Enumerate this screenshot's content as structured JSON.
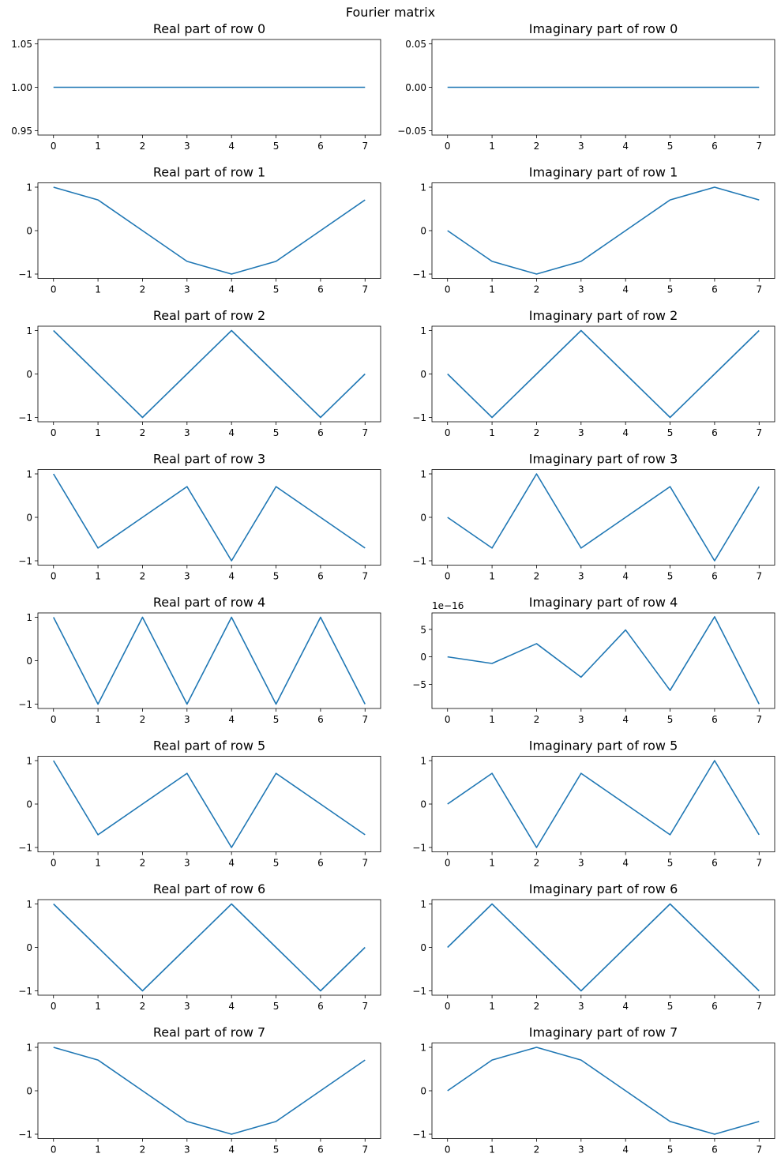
{
  "figure": {
    "title": "Fourier matrix",
    "line_color": "#1f77b4"
  },
  "chart_data": [
    {
      "type": "line",
      "title": "Real part of row 0",
      "x": [
        0,
        1,
        2,
        3,
        4,
        5,
        6,
        7
      ],
      "y": [
        1,
        1,
        1,
        1,
        1,
        1,
        1,
        1
      ],
      "xlim": [
        -0.35,
        7.35
      ],
      "ylim": [
        0.945,
        1.055
      ],
      "yticks": [
        0.95,
        1.0,
        1.05
      ],
      "ytick_labels": [
        "0.95",
        "1.00",
        "1.05"
      ],
      "xticks": [
        0,
        1,
        2,
        3,
        4,
        5,
        6,
        7
      ]
    },
    {
      "type": "line",
      "title": "Imaginary part of row 0",
      "x": [
        0,
        1,
        2,
        3,
        4,
        5,
        6,
        7
      ],
      "y": [
        0,
        0,
        0,
        0,
        0,
        0,
        0,
        0
      ],
      "xlim": [
        -0.35,
        7.35
      ],
      "ylim": [
        -0.055,
        0.055
      ],
      "yticks": [
        -0.05,
        0,
        0.05
      ],
      "ytick_labels": [
        "−0.05",
        "0.00",
        "0.05"
      ],
      "xticks": [
        0,
        1,
        2,
        3,
        4,
        5,
        6,
        7
      ]
    },
    {
      "type": "line",
      "title": "Real part of row 1",
      "x": [
        0,
        1,
        2,
        3,
        4,
        5,
        6,
        7
      ],
      "y": [
        1,
        0.707,
        0,
        -0.707,
        -1,
        -0.707,
        0,
        0.707
      ],
      "xlim": [
        -0.35,
        7.35
      ],
      "ylim": [
        -1.1,
        1.1
      ],
      "yticks": [
        -1,
        0,
        1
      ],
      "ytick_labels": [
        "−1",
        "0",
        "1"
      ],
      "xticks": [
        0,
        1,
        2,
        3,
        4,
        5,
        6,
        7
      ]
    },
    {
      "type": "line",
      "title": "Imaginary part of row 1",
      "x": [
        0,
        1,
        2,
        3,
        4,
        5,
        6,
        7
      ],
      "y": [
        0,
        -0.707,
        -1,
        -0.707,
        0,
        0.707,
        1,
        0.707
      ],
      "xlim": [
        -0.35,
        7.35
      ],
      "ylim": [
        -1.1,
        1.1
      ],
      "yticks": [
        -1,
        0,
        1
      ],
      "ytick_labels": [
        "−1",
        "0",
        "1"
      ],
      "xticks": [
        0,
        1,
        2,
        3,
        4,
        5,
        6,
        7
      ]
    },
    {
      "type": "line",
      "title": "Real part of row 2",
      "x": [
        0,
        1,
        2,
        3,
        4,
        5,
        6,
        7
      ],
      "y": [
        1,
        0,
        -1,
        0,
        1,
        0,
        -1,
        0
      ],
      "xlim": [
        -0.35,
        7.35
      ],
      "ylim": [
        -1.1,
        1.1
      ],
      "yticks": [
        -1,
        0,
        1
      ],
      "ytick_labels": [
        "−1",
        "0",
        "1"
      ],
      "xticks": [
        0,
        1,
        2,
        3,
        4,
        5,
        6,
        7
      ]
    },
    {
      "type": "line",
      "title": "Imaginary part of row 2",
      "x": [
        0,
        1,
        2,
        3,
        4,
        5,
        6,
        7
      ],
      "y": [
        0,
        -1,
        0,
        1,
        0,
        -1,
        0,
        1
      ],
      "xlim": [
        -0.35,
        7.35
      ],
      "ylim": [
        -1.1,
        1.1
      ],
      "yticks": [
        -1,
        0,
        1
      ],
      "ytick_labels": [
        "−1",
        "0",
        "1"
      ],
      "xticks": [
        0,
        1,
        2,
        3,
        4,
        5,
        6,
        7
      ]
    },
    {
      "type": "line",
      "title": "Real part of row 3",
      "x": [
        0,
        1,
        2,
        3,
        4,
        5,
        6,
        7
      ],
      "y": [
        1,
        -0.707,
        0,
        0.707,
        -1,
        0.707,
        0,
        -0.707
      ],
      "xlim": [
        -0.35,
        7.35
      ],
      "ylim": [
        -1.1,
        1.1
      ],
      "yticks": [
        -1,
        0,
        1
      ],
      "ytick_labels": [
        "−1",
        "0",
        "1"
      ],
      "xticks": [
        0,
        1,
        2,
        3,
        4,
        5,
        6,
        7
      ]
    },
    {
      "type": "line",
      "title": "Imaginary part of row 3",
      "x": [
        0,
        1,
        2,
        3,
        4,
        5,
        6,
        7
      ],
      "y": [
        0,
        -0.707,
        1,
        -0.707,
        0,
        0.707,
        -1,
        0.707
      ],
      "xlim": [
        -0.35,
        7.35
      ],
      "ylim": [
        -1.1,
        1.1
      ],
      "yticks": [
        -1,
        0,
        1
      ],
      "ytick_labels": [
        "−1",
        "0",
        "1"
      ],
      "xticks": [
        0,
        1,
        2,
        3,
        4,
        5,
        6,
        7
      ]
    },
    {
      "type": "line",
      "title": "Real part of row 4",
      "x": [
        0,
        1,
        2,
        3,
        4,
        5,
        6,
        7
      ],
      "y": [
        1,
        -1,
        1,
        -1,
        1,
        -1,
        1,
        -1
      ],
      "xlim": [
        -0.35,
        7.35
      ],
      "ylim": [
        -1.1,
        1.1
      ],
      "yticks": [
        -1,
        0,
        1
      ],
      "ytick_labels": [
        "−1",
        "0",
        "1"
      ],
      "xticks": [
        0,
        1,
        2,
        3,
        4,
        5,
        6,
        7
      ]
    },
    {
      "type": "line",
      "title": "Imaginary part of row 4",
      "x": [
        0,
        1,
        2,
        3,
        4,
        5,
        6,
        7
      ],
      "y": [
        0,
        -1.2,
        2.4,
        -3.7,
        4.9,
        -6.1,
        7.3,
        -8.6
      ],
      "xlim": [
        -0.35,
        7.35
      ],
      "ylim": [
        -9.4,
        8.0
      ],
      "yticks": [
        -5,
        0,
        5
      ],
      "ytick_labels": [
        "−5",
        "0",
        "5"
      ],
      "offset_label": "1e−16",
      "xticks": [
        0,
        1,
        2,
        3,
        4,
        5,
        6,
        7
      ]
    },
    {
      "type": "line",
      "title": "Real part of row 5",
      "x": [
        0,
        1,
        2,
        3,
        4,
        5,
        6,
        7
      ],
      "y": [
        1,
        -0.707,
        0,
        0.707,
        -1,
        0.707,
        0,
        -0.707
      ],
      "xlim": [
        -0.35,
        7.35
      ],
      "ylim": [
        -1.1,
        1.1
      ],
      "yticks": [
        -1,
        0,
        1
      ],
      "ytick_labels": [
        "−1",
        "0",
        "1"
      ],
      "xticks": [
        0,
        1,
        2,
        3,
        4,
        5,
        6,
        7
      ]
    },
    {
      "type": "line",
      "title": "Imaginary part of row 5",
      "x": [
        0,
        1,
        2,
        3,
        4,
        5,
        6,
        7
      ],
      "y": [
        0,
        0.707,
        -1,
        0.707,
        0,
        -0.707,
        1,
        -0.707
      ],
      "xlim": [
        -0.35,
        7.35
      ],
      "ylim": [
        -1.1,
        1.1
      ],
      "yticks": [
        -1,
        0,
        1
      ],
      "ytick_labels": [
        "−1",
        "0",
        "1"
      ],
      "xticks": [
        0,
        1,
        2,
        3,
        4,
        5,
        6,
        7
      ]
    },
    {
      "type": "line",
      "title": "Real part of row 6",
      "x": [
        0,
        1,
        2,
        3,
        4,
        5,
        6,
        7
      ],
      "y": [
        1,
        0,
        -1,
        0,
        1,
        0,
        -1,
        0
      ],
      "xlim": [
        -0.35,
        7.35
      ],
      "ylim": [
        -1.1,
        1.1
      ],
      "yticks": [
        -1,
        0,
        1
      ],
      "ytick_labels": [
        "−1",
        "0",
        "1"
      ],
      "xticks": [
        0,
        1,
        2,
        3,
        4,
        5,
        6,
        7
      ]
    },
    {
      "type": "line",
      "title": "Imaginary part of row 6",
      "x": [
        0,
        1,
        2,
        3,
        4,
        5,
        6,
        7
      ],
      "y": [
        0,
        1,
        0,
        -1,
        0,
        1,
        0,
        -1
      ],
      "xlim": [
        -0.35,
        7.35
      ],
      "ylim": [
        -1.1,
        1.1
      ],
      "yticks": [
        -1,
        0,
        1
      ],
      "ytick_labels": [
        "−1",
        "0",
        "1"
      ],
      "xticks": [
        0,
        1,
        2,
        3,
        4,
        5,
        6,
        7
      ]
    },
    {
      "type": "line",
      "title": "Real part of row 7",
      "x": [
        0,
        1,
        2,
        3,
        4,
        5,
        6,
        7
      ],
      "y": [
        1,
        0.707,
        0,
        -0.707,
        -1,
        -0.707,
        0,
        0.707
      ],
      "xlim": [
        -0.35,
        7.35
      ],
      "ylim": [
        -1.1,
        1.1
      ],
      "yticks": [
        -1,
        0,
        1
      ],
      "ytick_labels": [
        "−1",
        "0",
        "1"
      ],
      "xticks": [
        0,
        1,
        2,
        3,
        4,
        5,
        6,
        7
      ]
    },
    {
      "type": "line",
      "title": "Imaginary part of row 7",
      "x": [
        0,
        1,
        2,
        3,
        4,
        5,
        6,
        7
      ],
      "y": [
        0,
        0.707,
        1,
        0.707,
        0,
        -0.707,
        -1,
        -0.707
      ],
      "xlim": [
        -0.35,
        7.35
      ],
      "ylim": [
        -1.1,
        1.1
      ],
      "yticks": [
        -1,
        0,
        1
      ],
      "ytick_labels": [
        "−1",
        "0",
        "1"
      ],
      "xticks": [
        0,
        1,
        2,
        3,
        4,
        5,
        6,
        7
      ]
    }
  ]
}
